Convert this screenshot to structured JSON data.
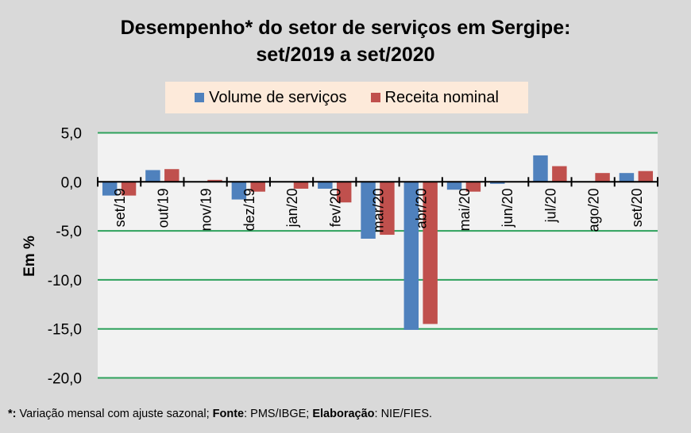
{
  "chart_data": {
    "type": "bar",
    "title": "Desempenho* do setor de serviços em Sergipe:",
    "subtitle": "set/2019 a set/2020",
    "xlabel": "",
    "ylabel": "Em %",
    "ylim": [
      -20,
      5
    ],
    "yticks": [
      5,
      0,
      -5,
      -10,
      -15,
      -20
    ],
    "ytick_labels": [
      "5,0",
      "0,0",
      "-5,0",
      "-10,0",
      "-15,0",
      "-20,0"
    ],
    "grid": true,
    "legend_position": "top-center",
    "categories": [
      "set/19",
      "out/19",
      "nov/19",
      "dez/19",
      "jan/20",
      "fev/20",
      "mar/20",
      "abr/20",
      "mai/20",
      "jun/20",
      "jul/20",
      "ago/20",
      "set/20"
    ],
    "series": [
      {
        "name": "Volume de serviços",
        "color": "#4f81bd",
        "values": [
          -1.4,
          1.2,
          0.0,
          -1.8,
          0.0,
          -0.7,
          -5.8,
          -15.1,
          -0.8,
          -0.2,
          2.7,
          0.0,
          0.9
        ]
      },
      {
        "name": "Receita nominal",
        "color": "#c0504d",
        "values": [
          -1.4,
          1.3,
          0.2,
          -1.0,
          -0.7,
          -2.1,
          -5.4,
          -14.5,
          -1.0,
          0.0,
          1.6,
          0.9,
          1.1
        ]
      }
    ]
  },
  "colors": {
    "background": "#d9d9d9",
    "plot_background": "#f2f2f2",
    "gridline": "#2ea15c",
    "legend_background": "#fdeada"
  },
  "footnote": {
    "star_label": "*:",
    "star_text": " Variação mensal com ajuste sazonal; ",
    "source_label": "Fonte",
    "source_text": ": PMS/IBGE; ",
    "author_label": "Elaboração",
    "author_text": ": NIE/FIES."
  }
}
